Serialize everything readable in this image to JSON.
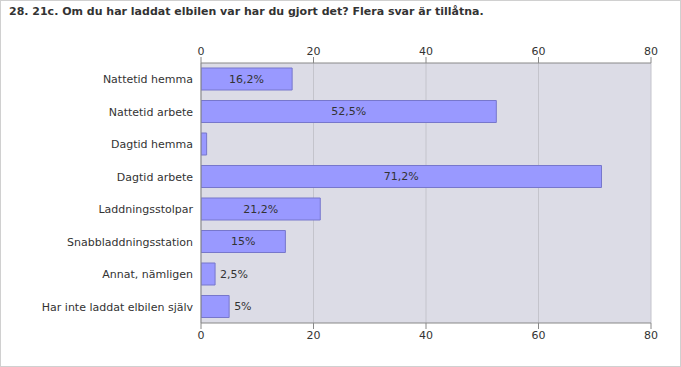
{
  "chart_data": {
    "type": "bar",
    "orientation": "horizontal",
    "title": "28. 21c. Om du har laddat elbilen var har du gjort det? Flera svar är tillåtna.",
    "categories": [
      "Nattetid hemma",
      "Nattetid arbete",
      "Dagtid hemma",
      "Dagtid arbete",
      "Laddningsstolpar",
      "Snabbladdningsstation",
      "Annat, nämligen",
      "Har inte laddat elbilen själv"
    ],
    "values": [
      16.2,
      52.5,
      1,
      71.2,
      21.2,
      15,
      2.5,
      5
    ],
    "value_labels": [
      "16,2%",
      "52,5%",
      null,
      "71,2%",
      "21,2%",
      "15%",
      "2,5%",
      "5%"
    ],
    "color": "#9999ff",
    "xlim": [
      0,
      80
    ],
    "xticks": [
      0,
      20,
      40,
      60,
      80
    ],
    "grid": true,
    "data_labels": true
  }
}
